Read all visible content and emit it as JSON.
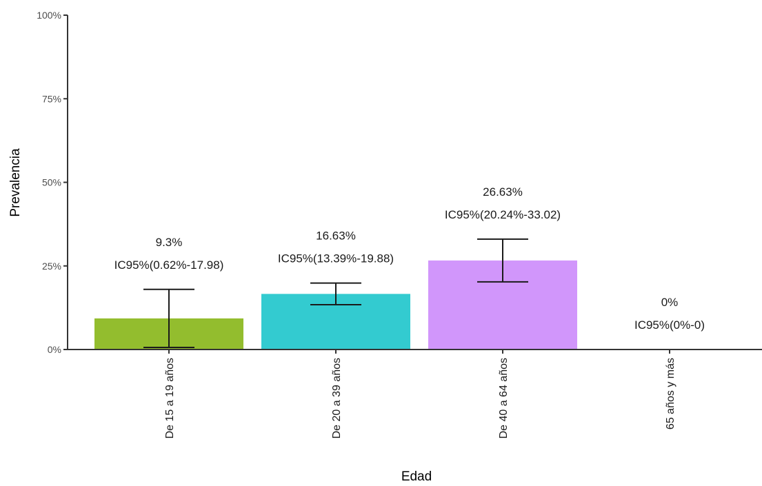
{
  "chart_data": {
    "type": "bar",
    "title": "",
    "xlabel": "Edad",
    "ylabel": "Prevalencia",
    "ylim": [
      0,
      100
    ],
    "yticks": [
      0,
      25,
      50,
      75,
      100
    ],
    "ytick_labels": [
      "0%",
      "25%",
      "50%",
      "75%",
      "100%"
    ],
    "grid": false,
    "legend": "none",
    "categories": [
      "De 15 a 19 años",
      "De 20 a 39 años",
      "De 40 a 64 años",
      "65 años y más"
    ],
    "values": [
      9.3,
      16.63,
      26.63,
      0
    ],
    "ci_low": [
      0.62,
      13.39,
      20.24,
      0
    ],
    "ci_high": [
      17.98,
      19.88,
      33.02,
      0
    ],
    "value_labels": [
      "9.3%",
      "16.63%",
      "26.63%",
      "0%"
    ],
    "ci_labels": [
      "IC95%(0.62%-17.98)",
      "IC95%(13.39%-19.88)",
      "IC95%(20.24%-33.02)",
      "IC95%(0%-0)"
    ],
    "colors": [
      "#93bd2e",
      "#33cbd0",
      "#d196fb",
      "#f5b5a8"
    ]
  }
}
